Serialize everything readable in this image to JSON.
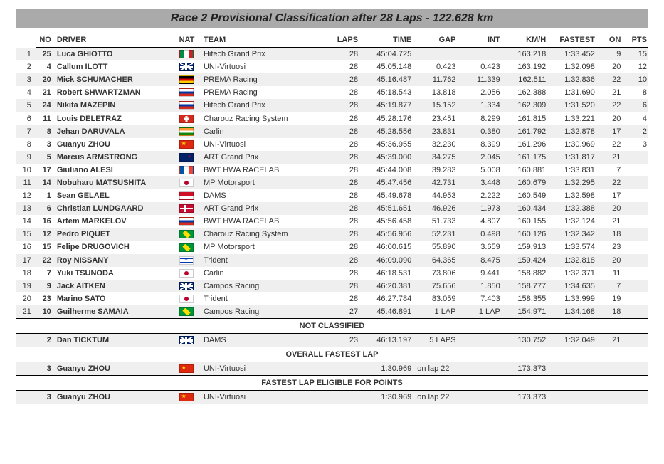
{
  "title": "Race 2 Provisional Classification after 28 Laps - 122.628 km",
  "headers": {
    "pos": "",
    "no": "NO",
    "driver": "DRIVER",
    "nat": "NAT",
    "team": "TEAM",
    "laps": "LAPS",
    "time": "TIME",
    "gap": "GAP",
    "int": "INT",
    "kmh": "KM/H",
    "fastest": "FASTEST",
    "on": "ON",
    "pts": "PTS"
  },
  "sections": {
    "not_classified": "NOT CLASSIFIED",
    "overall_fastest": "OVERALL FASTEST LAP",
    "fastest_points": "FASTEST LAP ELIGIBLE FOR POINTS"
  },
  "rows": [
    {
      "pos": "1",
      "no": "25",
      "driver": "Luca GHIOTTO",
      "nat": "ITA",
      "team": "Hitech Grand Prix",
      "laps": "28",
      "time": "45:04.725",
      "gap": "",
      "int": "",
      "kmh": "163.218",
      "fast": "1:33.452",
      "on": "9",
      "pts": "15"
    },
    {
      "pos": "2",
      "no": "4",
      "driver": "Callum ILOTT",
      "nat": "GBR",
      "team": "UNI-Virtuosi",
      "laps": "28",
      "time": "45:05.148",
      "gap": "0.423",
      "int": "0.423",
      "kmh": "163.192",
      "fast": "1:32.098",
      "on": "20",
      "pts": "12"
    },
    {
      "pos": "3",
      "no": "20",
      "driver": "Mick SCHUMACHER",
      "nat": "GER",
      "team": "PREMA Racing",
      "laps": "28",
      "time": "45:16.487",
      "gap": "11.762",
      "int": "11.339",
      "kmh": "162.511",
      "fast": "1:32.836",
      "on": "22",
      "pts": "10"
    },
    {
      "pos": "4",
      "no": "21",
      "driver": "Robert SHWARTZMAN",
      "nat": "RUS",
      "team": "PREMA Racing",
      "laps": "28",
      "time": "45:18.543",
      "gap": "13.818",
      "int": "2.056",
      "kmh": "162.388",
      "fast": "1:31.690",
      "on": "21",
      "pts": "8"
    },
    {
      "pos": "5",
      "no": "24",
      "driver": "Nikita MAZEPIN",
      "nat": "RUS",
      "team": "Hitech Grand Prix",
      "laps": "28",
      "time": "45:19.877",
      "gap": "15.152",
      "int": "1.334",
      "kmh": "162.309",
      "fast": "1:31.520",
      "on": "22",
      "pts": "6"
    },
    {
      "pos": "6",
      "no": "11",
      "driver": "Louis DELETRAZ",
      "nat": "SUI",
      "team": "Charouz Racing System",
      "laps": "28",
      "time": "45:28.176",
      "gap": "23.451",
      "int": "8.299",
      "kmh": "161.815",
      "fast": "1:33.221",
      "on": "20",
      "pts": "4"
    },
    {
      "pos": "7",
      "no": "8",
      "driver": "Jehan DARUVALA",
      "nat": "IND",
      "team": "Carlin",
      "laps": "28",
      "time": "45:28.556",
      "gap": "23.831",
      "int": "0.380",
      "kmh": "161.792",
      "fast": "1:32.878",
      "on": "17",
      "pts": "2"
    },
    {
      "pos": "8",
      "no": "3",
      "driver": "Guanyu ZHOU",
      "nat": "CHN",
      "team": "UNI-Virtuosi",
      "laps": "28",
      "time": "45:36.955",
      "gap": "32.230",
      "int": "8.399",
      "kmh": "161.296",
      "fast": "1:30.969",
      "on": "22",
      "pts": "3"
    },
    {
      "pos": "9",
      "no": "5",
      "driver": "Marcus ARMSTRONG",
      "nat": "NZL",
      "team": "ART Grand Prix",
      "laps": "28",
      "time": "45:39.000",
      "gap": "34.275",
      "int": "2.045",
      "kmh": "161.175",
      "fast": "1:31.817",
      "on": "21",
      "pts": ""
    },
    {
      "pos": "10",
      "no": "17",
      "driver": "Giuliano ALESI",
      "nat": "FRA",
      "team": "BWT HWA RACELAB",
      "laps": "28",
      "time": "45:44.008",
      "gap": "39.283",
      "int": "5.008",
      "kmh": "160.881",
      "fast": "1:33.831",
      "on": "7",
      "pts": ""
    },
    {
      "pos": "11",
      "no": "14",
      "driver": "Nobuharu MATSUSHITA",
      "nat": "JPN",
      "team": "MP Motorsport",
      "laps": "28",
      "time": "45:47.456",
      "gap": "42.731",
      "int": "3.448",
      "kmh": "160.679",
      "fast": "1:32.295",
      "on": "22",
      "pts": ""
    },
    {
      "pos": "12",
      "no": "1",
      "driver": "Sean GELAEL",
      "nat": "INA",
      "team": "DAMS",
      "laps": "28",
      "time": "45:49.678",
      "gap": "44.953",
      "int": "2.222",
      "kmh": "160.549",
      "fast": "1:32.598",
      "on": "17",
      "pts": ""
    },
    {
      "pos": "13",
      "no": "6",
      "driver": "Christian LUNDGAARD",
      "nat": "DEN",
      "team": "ART Grand Prix",
      "laps": "28",
      "time": "45:51.651",
      "gap": "46.926",
      "int": "1.973",
      "kmh": "160.434",
      "fast": "1:32.388",
      "on": "20",
      "pts": ""
    },
    {
      "pos": "14",
      "no": "16",
      "driver": "Artem MARKELOV",
      "nat": "RUS",
      "team": "BWT HWA RACELAB",
      "laps": "28",
      "time": "45:56.458",
      "gap": "51.733",
      "int": "4.807",
      "kmh": "160.155",
      "fast": "1:32.124",
      "on": "21",
      "pts": ""
    },
    {
      "pos": "15",
      "no": "12",
      "driver": "Pedro PIQUET",
      "nat": "BRA",
      "team": "Charouz Racing System",
      "laps": "28",
      "time": "45:56.956",
      "gap": "52.231",
      "int": "0.498",
      "kmh": "160.126",
      "fast": "1:32.342",
      "on": "18",
      "pts": ""
    },
    {
      "pos": "16",
      "no": "15",
      "driver": "Felipe DRUGOVICH",
      "nat": "BRA",
      "team": "MP Motorsport",
      "laps": "28",
      "time": "46:00.615",
      "gap": "55.890",
      "int": "3.659",
      "kmh": "159.913",
      "fast": "1:33.574",
      "on": "23",
      "pts": ""
    },
    {
      "pos": "17",
      "no": "22",
      "driver": "Roy NISSANY",
      "nat": "ISR",
      "team": "Trident",
      "laps": "28",
      "time": "46:09.090",
      "gap": "64.365",
      "int": "8.475",
      "kmh": "159.424",
      "fast": "1:32.818",
      "on": "20",
      "pts": ""
    },
    {
      "pos": "18",
      "no": "7",
      "driver": "Yuki TSUNODA",
      "nat": "JPN",
      "team": "Carlin",
      "laps": "28",
      "time": "46:18.531",
      "gap": "73.806",
      "int": "9.441",
      "kmh": "158.882",
      "fast": "1:32.371",
      "on": "11",
      "pts": ""
    },
    {
      "pos": "19",
      "no": "9",
      "driver": "Jack AITKEN",
      "nat": "GBR",
      "team": "Campos Racing",
      "laps": "28",
      "time": "46:20.381",
      "gap": "75.656",
      "int": "1.850",
      "kmh": "158.777",
      "fast": "1:34.635",
      "on": "7",
      "pts": ""
    },
    {
      "pos": "20",
      "no": "23",
      "driver": "Marino SATO",
      "nat": "JPN",
      "team": "Trident",
      "laps": "28",
      "time": "46:27.784",
      "gap": "83.059",
      "int": "7.403",
      "kmh": "158.355",
      "fast": "1:33.999",
      "on": "19",
      "pts": ""
    },
    {
      "pos": "21",
      "no": "10",
      "driver": "Guilherme SAMAIA",
      "nat": "BRA",
      "team": "Campos Racing",
      "laps": "27",
      "time": "45:46.891",
      "gap": "1 LAP",
      "int": "1 LAP",
      "kmh": "154.971",
      "fast": "1:34.168",
      "on": "18",
      "pts": ""
    }
  ],
  "not_classified": [
    {
      "pos": "",
      "no": "2",
      "driver": "Dan TICKTUM",
      "nat": "GBR",
      "team": "DAMS",
      "laps": "23",
      "time": "46:13.197",
      "gap": "5 LAPS",
      "int": "",
      "kmh": "130.752",
      "fast": "1:32.049",
      "on": "21",
      "pts": ""
    }
  ],
  "overall_fastest": [
    {
      "pos": "",
      "no": "3",
      "driver": "Guanyu ZHOU",
      "nat": "CHN",
      "team": "UNI-Virtuosi",
      "laps": "",
      "time": "1:30.969",
      "gap": "on lap 22",
      "int": "",
      "kmh": "173.373",
      "fast": "",
      "on": "",
      "pts": ""
    }
  ],
  "fastest_points": [
    {
      "pos": "",
      "no": "3",
      "driver": "Guanyu ZHOU",
      "nat": "CHN",
      "team": "UNI-Virtuosi",
      "laps": "",
      "time": "1:30.969",
      "gap": "on lap 22",
      "int": "",
      "kmh": "173.373",
      "fast": "",
      "on": "",
      "pts": ""
    }
  ]
}
